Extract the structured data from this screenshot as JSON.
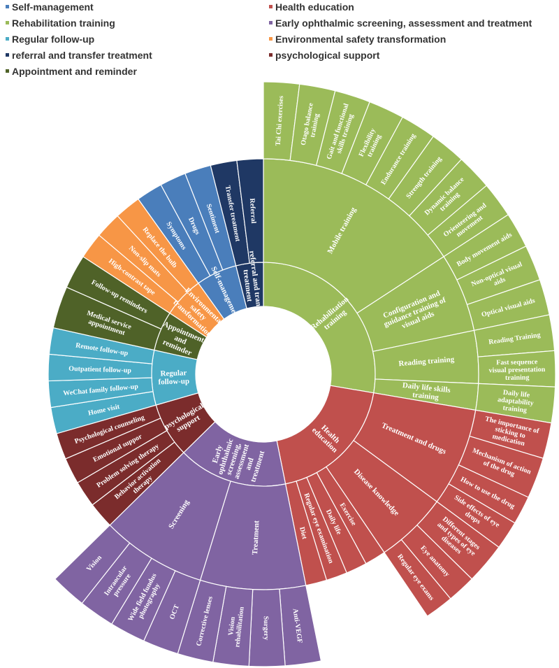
{
  "chart_data": {
    "type": "sunburst",
    "title": "",
    "legend": {
      "placement": "top",
      "entries": [
        {
          "name": "Self-management",
          "color": "#4a7ebb"
        },
        {
          "name": "Health education",
          "color": "#c0504d"
        },
        {
          "name": "Rehabilitation training",
          "color": "#9bbb59"
        },
        {
          "name": "Early ophthalmic screening, assessment and treatment",
          "color": "#8064a2"
        },
        {
          "name": "Regular follow-up",
          "color": "#4bacc6"
        },
        {
          "name": "Environmental safety transformation",
          "color": "#f79646"
        },
        {
          "name": "referral and transfer treatment",
          "color": "#1f3864"
        },
        {
          "name": "psychological support",
          "color": "#7b2c2c"
        },
        {
          "name": "Appointment and reminder",
          "color": "#4f6228"
        }
      ]
    },
    "start_angle_deg": 90,
    "tree": [
      {
        "name": "Rehabilitation training",
        "color": "#9bbb59",
        "children": [
          {
            "name": "Mobile training",
            "children": [
              {
                "name": "Tai Chi exercises",
                "value": 1.0,
                "outer": true
              },
              {
                "name": "Otago balance training",
                "value": 1.0,
                "outer": true
              },
              {
                "name": "Gait and functional skills training",
                "value": 1.0,
                "outer": true
              },
              {
                "name": "Flexibility training",
                "value": 1.0,
                "outer": true
              },
              {
                "name": "Endurance training",
                "value": 1.0,
                "outer": true
              },
              {
                "name": "Strength training",
                "value": 1.0,
                "outer": true
              },
              {
                "name": "Dynamic balance training",
                "value": 1.0,
                "outer": true
              },
              {
                "name": "Orienteering and movement",
                "value": 1.0,
                "outer": true
              }
            ]
          },
          {
            "name": "Configuration and guidance training of visual aids",
            "children": [
              {
                "name": "Body movement aids",
                "value": 1.0,
                "outer": true
              },
              {
                "name": "Non-optical visual aids",
                "value": 1.0,
                "outer": true
              },
              {
                "name": "Optical visual aids",
                "value": 1.0,
                "outer": true
              }
            ]
          },
          {
            "name": "Reading training",
            "children": [
              {
                "name": "Reading Training",
                "value": 1.0,
                "outer": true
              },
              {
                "name": "Fast sequence visual presentation training",
                "value": 1.0,
                "outer": true
              }
            ]
          },
          {
            "name": "Daily life skills training",
            "children": [
              {
                "name": "Daily life adaptability training",
                "value": 1.0,
                "outer": true
              }
            ]
          }
        ]
      },
      {
        "name": "Health education",
        "color": "#c0504d",
        "children": [
          {
            "name": "Treatment and drugs",
            "children": [
              {
                "name": "The importance of sticking to medication",
                "value": 1.0,
                "outer": true
              },
              {
                "name": "Mechanism of action of the drug",
                "value": 1.15,
                "outer": true
              },
              {
                "name": "How to use the drug",
                "value": 0.8,
                "outer": true
              },
              {
                "name": "Side effects of eye drops",
                "value": 0.8,
                "outer": true
              }
            ]
          },
          {
            "name": "Disease knowledge",
            "children": [
              {
                "name": "Different stages and types of eye diseases",
                "value": 1.15,
                "outer": true
              },
              {
                "name": "Eye anatomy",
                "value": 0.8,
                "outer": true
              },
              {
                "name": "Regular eye exams",
                "value": 0.8,
                "outer": true
              }
            ]
          },
          {
            "name": "Exercise",
            "value": 0.8
          },
          {
            "name": "Daily life",
            "value": 0.8
          },
          {
            "name": "Regular eye examination",
            "value": 0.8
          },
          {
            "name": "Diet",
            "value": 0.8
          }
        ]
      },
      {
        "name": "Early ophthalmic screening, assessment and treatment",
        "color": "#8064a2",
        "children": [
          {
            "name": "Treatment",
            "children": [
              {
                "name": "Anti-VEGF",
                "value": 1.0,
                "outer": true
              },
              {
                "name": "Surgery",
                "value": 1.0,
                "outer": true
              },
              {
                "name": "Vision rehabilitation",
                "value": 1.0,
                "outer": true
              },
              {
                "name": "Corrective lenses",
                "value": 1.0,
                "outer": true
              }
            ]
          },
          {
            "name": "Screening",
            "children": [
              {
                "name": "OCT",
                "value": 1.0,
                "outer": true
              },
              {
                "name": "Wide field fundus photography",
                "value": 1.0,
                "outer": true
              },
              {
                "name": "Intraocular pressure",
                "value": 1.0,
                "outer": true
              },
              {
                "name": "Vision",
                "value": 1.0,
                "outer": true
              }
            ]
          }
        ]
      },
      {
        "name": "psychological support",
        "color": "#7b2c2c",
        "children": [
          {
            "name": "Behavior activation therapy",
            "value": 1.0
          },
          {
            "name": "Problem solving therapy",
            "value": 1.0
          },
          {
            "name": "Emotional suppor",
            "value": 1.0
          },
          {
            "name": "Psychological counseling",
            "value": 1.0
          }
        ]
      },
      {
        "name": "Regular follow-up",
        "color": "#4bacc6",
        "children": [
          {
            "name": "Home visit",
            "value": 1.0
          },
          {
            "name": "WeChat family follow-up",
            "value": 1.0
          },
          {
            "name": "Outpatient follow-up",
            "value": 1.0
          },
          {
            "name": "Remote follow-up",
            "value": 1.0
          }
        ]
      },
      {
        "name": "Appointment and reminder",
        "color": "#4f6228",
        "children": [
          {
            "name": "Medical service appointment",
            "value": 1.6
          },
          {
            "name": "Follow-up reminders",
            "value": 1.3
          }
        ]
      },
      {
        "name": "Environmental safety transformation",
        "color": "#f79646",
        "children": [
          {
            "name": "High-contrast tape",
            "value": 1.0
          },
          {
            "name": "Non-slip mats",
            "value": 1.0
          },
          {
            "name": "Replace the bulb",
            "value": 1.0
          }
        ]
      },
      {
        "name": "Self-management",
        "color": "#4a7ebb",
        "children": [
          {
            "name": "Symptoms",
            "value": 1.0
          },
          {
            "name": "Drugs",
            "value": 1.0
          },
          {
            "name": "Sentiment",
            "value": 1.0
          }
        ]
      },
      {
        "name": "referral and transfer treatment",
        "color": "#1f3864",
        "children": [
          {
            "name": "Transfer treatment",
            "value": 1.0
          },
          {
            "name": "Referral",
            "value": 1.0
          }
        ]
      }
    ]
  }
}
